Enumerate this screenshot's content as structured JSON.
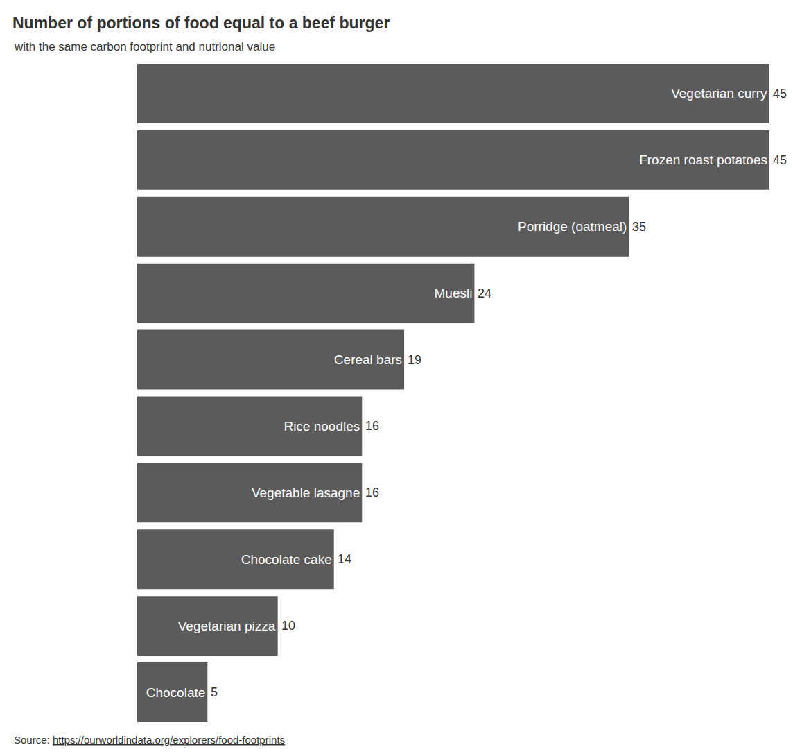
{
  "chart_data": {
    "type": "bar",
    "title": "Number of portions of food equal to a beef burger",
    "subtitle": "with the same carbon footprint and nutrional value",
    "source_label": "Source:",
    "source_url": "https://ourworldindata.org/explorers/food-footprints",
    "categories": [
      "Vegetarian curry",
      "Frozen roast potatoes",
      "Porridge (oatmeal)",
      "Muesli",
      "Cereal bars",
      "Rice noodles",
      "Vegetable lasagne",
      "Chocolate cake",
      "Vegetarian pizza",
      "Chocolate"
    ],
    "values": [
      45,
      45,
      35,
      24,
      19,
      16,
      16,
      14,
      10,
      5
    ],
    "color": "#5b5b5b",
    "orientation": "horizontal",
    "data_labels": true,
    "tick_labels": false,
    "grid": false,
    "xlim": [
      0,
      45
    ]
  }
}
